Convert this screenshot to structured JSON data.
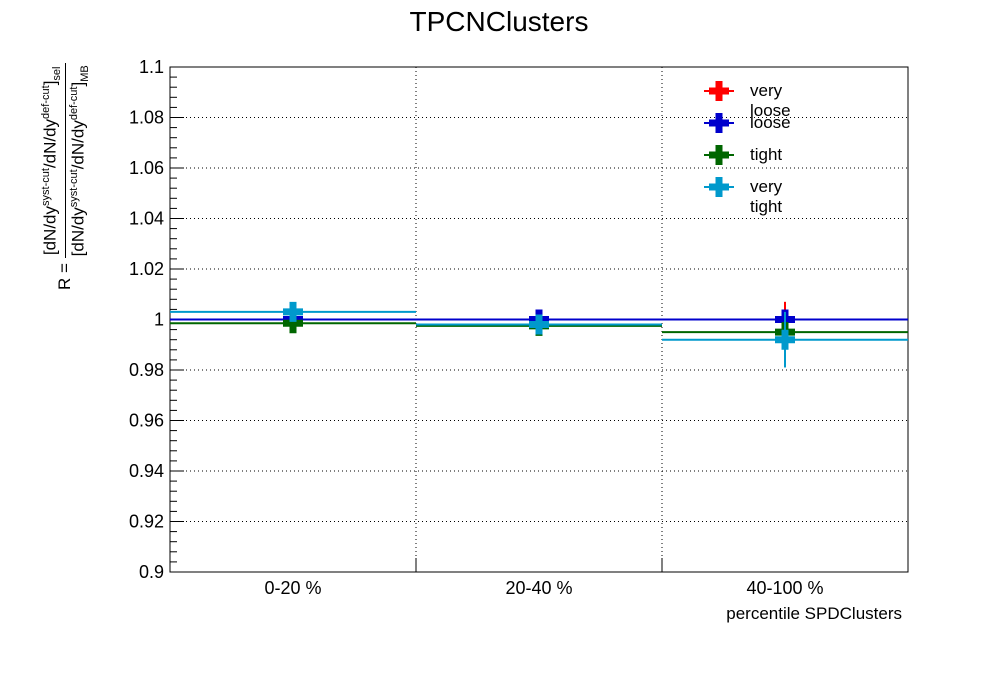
{
  "chart_data": {
    "type": "scatter",
    "title": "TPCNClusters",
    "xlabel": "percentile SPDClusters",
    "ylabel": {
      "prefix": "R = ",
      "numerator": "[dN/dy^{syst-cut}/dN/dy^{def-cut}]_{sel}",
      "denominator": "[dN/dy^{syst-cut}/dN/dy^{def-cut}]_{MB}"
    },
    "categories": [
      "0-20 %",
      "20-40 %",
      "40-100 %"
    ],
    "ylim": [
      0.9,
      1.1
    ],
    "yticks": [
      "0.9",
      "0.92",
      "0.94",
      "0.96",
      "0.98",
      "1",
      "1.02",
      "1.04",
      "1.06",
      "1.08",
      "1.1"
    ],
    "grid": true,
    "legend_position": "top-right",
    "series": [
      {
        "name": "very loose",
        "color": "#ff0000",
        "values": [
          1.0,
          1.0,
          1.0
        ],
        "errors": [
          0.002,
          0.002,
          0.007
        ]
      },
      {
        "name": "loose",
        "color": "#0000cc",
        "values": [
          1.0,
          1.0,
          1.0
        ],
        "errors": [
          0.002,
          0.002,
          0.003
        ]
      },
      {
        "name": "tight",
        "color": "#006600",
        "values": [
          0.9985,
          0.9975,
          0.995
        ],
        "errors": [
          0.003,
          0.003,
          0.004
        ]
      },
      {
        "name": "very tight",
        "color": "#0099cc",
        "values": [
          1.003,
          0.998,
          0.992
        ],
        "errors": [
          0.003,
          0.003,
          0.011
        ]
      }
    ]
  }
}
